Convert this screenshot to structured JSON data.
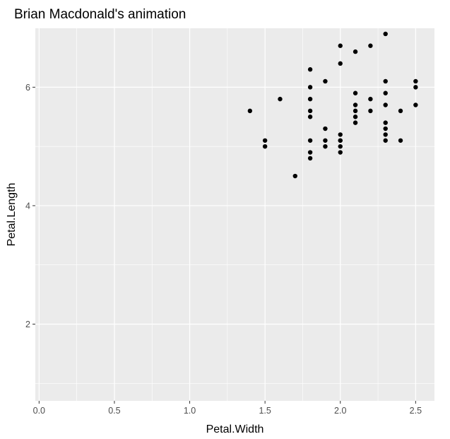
{
  "chart_data": {
    "type": "scatter",
    "title": "Brian Macdonald's animation",
    "xlabel": "Petal.Width",
    "ylabel": "Petal.Length",
    "xlim": [
      -0.025,
      2.625
    ],
    "ylim": [
      0.705,
      6.995
    ],
    "x_ticks": [
      0.0,
      0.5,
      1.0,
      1.5,
      2.0,
      2.5
    ],
    "x_tick_labels": [
      "0.0",
      "0.5",
      "1.0",
      "1.5",
      "2.0",
      "2.5"
    ],
    "y_ticks": [
      2,
      4,
      6
    ],
    "y_tick_labels": [
      "2",
      "4",
      "6"
    ],
    "grid": true,
    "legend": "none",
    "colors": {
      "panel": "#ebebeb",
      "grid": "#ffffff",
      "point": "#000000",
      "tick": "#333333"
    },
    "points": [
      {
        "x": 2.5,
        "y": 6.0
      },
      {
        "x": 1.9,
        "y": 5.1
      },
      {
        "x": 2.1,
        "y": 5.9
      },
      {
        "x": 1.8,
        "y": 5.6
      },
      {
        "x": 2.2,
        "y": 5.8
      },
      {
        "x": 2.1,
        "y": 6.6
      },
      {
        "x": 1.7,
        "y": 4.5
      },
      {
        "x": 1.8,
        "y": 6.3
      },
      {
        "x": 1.8,
        "y": 5.8
      },
      {
        "x": 2.5,
        "y": 6.1
      },
      {
        "x": 2.0,
        "y": 5.1
      },
      {
        "x": 1.9,
        "y": 5.3
      },
      {
        "x": 2.1,
        "y": 5.5
      },
      {
        "x": 2.0,
        "y": 5.0
      },
      {
        "x": 2.4,
        "y": 5.1
      },
      {
        "x": 2.3,
        "y": 5.3
      },
      {
        "x": 1.8,
        "y": 5.5
      },
      {
        "x": 2.2,
        "y": 6.7
      },
      {
        "x": 2.3,
        "y": 6.9
      },
      {
        "x": 1.5,
        "y": 5.0
      },
      {
        "x": 2.3,
        "y": 5.7
      },
      {
        "x": 2.0,
        "y": 4.9
      },
      {
        "x": 2.0,
        "y": 6.7
      },
      {
        "x": 1.8,
        "y": 4.9
      },
      {
        "x": 2.1,
        "y": 5.7
      },
      {
        "x": 1.8,
        "y": 6.0
      },
      {
        "x": 1.8,
        "y": 4.8
      },
      {
        "x": 2.1,
        "y": 5.6
      },
      {
        "x": 1.6,
        "y": 5.8
      },
      {
        "x": 1.9,
        "y": 6.1
      },
      {
        "x": 2.0,
        "y": 6.4
      },
      {
        "x": 2.2,
        "y": 5.6
      },
      {
        "x": 1.5,
        "y": 5.1
      },
      {
        "x": 1.4,
        "y": 5.6
      },
      {
        "x": 2.3,
        "y": 6.1
      },
      {
        "x": 2.4,
        "y": 5.6
      },
      {
        "x": 1.8,
        "y": 5.1
      },
      {
        "x": 2.1,
        "y": 5.4
      },
      {
        "x": 2.3,
        "y": 5.1
      },
      {
        "x": 1.9,
        "y": 5.0
      },
      {
        "x": 2.3,
        "y": 5.2
      },
      {
        "x": 2.3,
        "y": 5.4
      },
      {
        "x": 2.0,
        "y": 5.2
      },
      {
        "x": 2.3,
        "y": 5.9
      },
      {
        "x": 2.5,
        "y": 5.7
      },
      {
        "x": 2.0,
        "y": 5.1
      }
    ]
  }
}
